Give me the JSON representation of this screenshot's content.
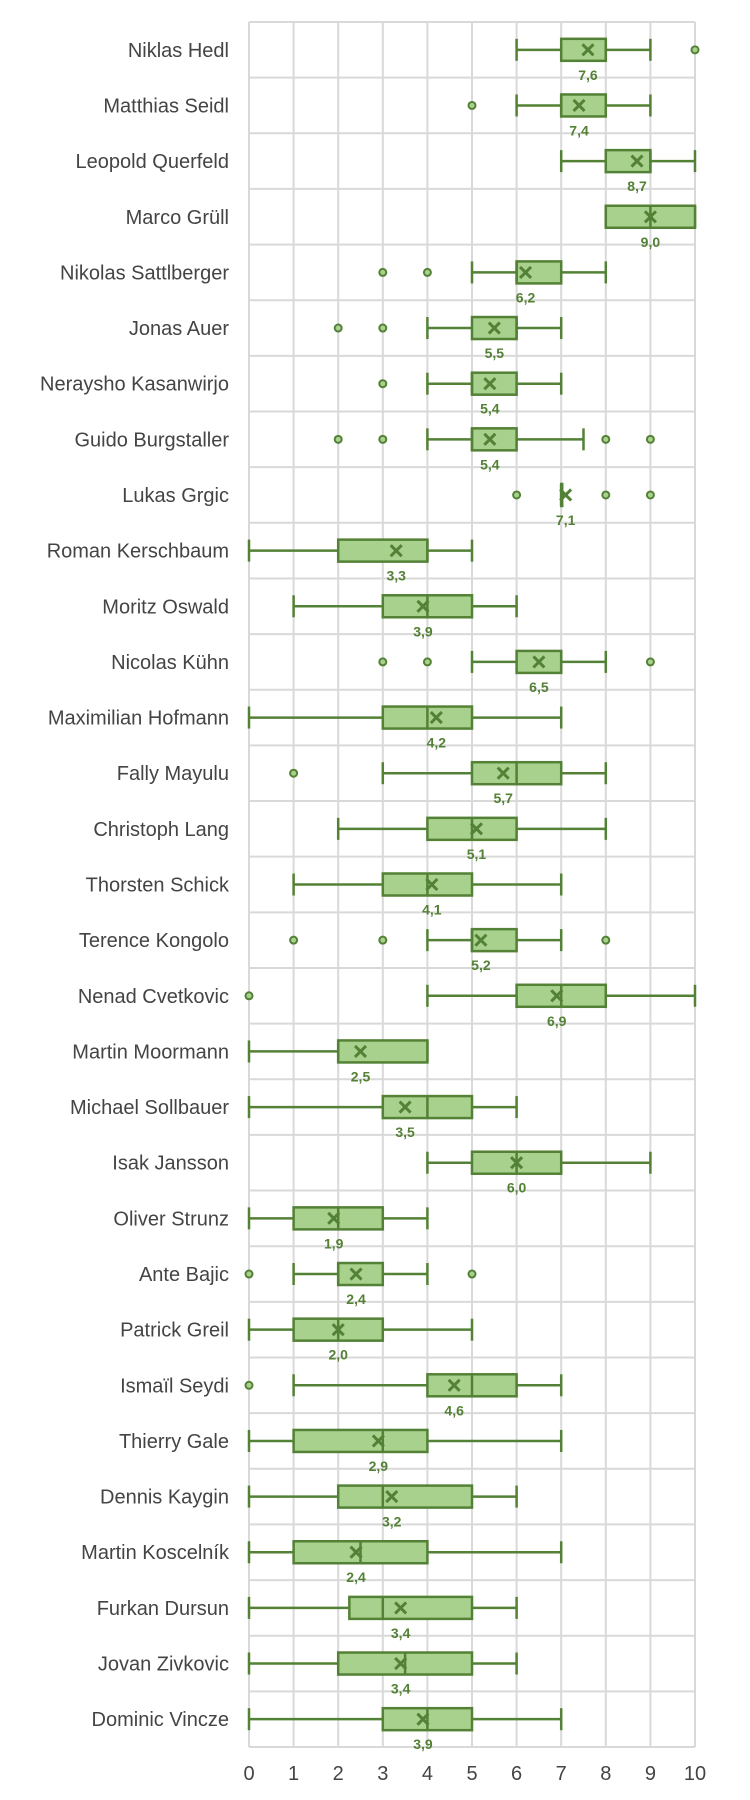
{
  "colors": {
    "box_fill": "#a9d18e",
    "box_stroke": "#538135",
    "grid": "#d9d9d9",
    "text": "#444444"
  },
  "chart_data": {
    "type": "box",
    "orientation": "horizontal",
    "xlim": [
      0,
      10
    ],
    "x_ticks": [
      "0",
      "1",
      "2",
      "3",
      "4",
      "5",
      "6",
      "7",
      "8",
      "9",
      "10"
    ],
    "grid": true,
    "legend": "none",
    "mean_marker": "x",
    "categories": [
      {
        "name": "Niklas Hedl",
        "whisker_low": 6,
        "q1": 7,
        "median": 8,
        "q3": 8,
        "whisker_high": 9,
        "mean": 7.6,
        "mean_label": "7,6",
        "outliers": [
          10
        ]
      },
      {
        "name": "Matthias Seidl",
        "whisker_low": 6,
        "q1": 7,
        "median": 7,
        "q3": 8,
        "whisker_high": 9,
        "mean": 7.4,
        "mean_label": "7,4",
        "outliers": [
          5
        ]
      },
      {
        "name": "Leopold Querfeld",
        "whisker_low": 7,
        "q1": 8,
        "median": 9,
        "q3": 9,
        "whisker_high": 10,
        "mean": 8.7,
        "mean_label": "8,7",
        "outliers": []
      },
      {
        "name": "Marco Grüll",
        "whisker_low": 8,
        "q1": 8,
        "median": 9,
        "q3": 10,
        "whisker_high": 10,
        "mean": 9.0,
        "mean_label": "9,0",
        "outliers": []
      },
      {
        "name": "Nikolas Sattlberger",
        "whisker_low": 5,
        "q1": 6,
        "median": 6,
        "q3": 7,
        "whisker_high": 8,
        "mean": 6.2,
        "mean_label": "6,2",
        "outliers": [
          3,
          4
        ]
      },
      {
        "name": "Jonas Auer",
        "whisker_low": 4,
        "q1": 5,
        "median": 6,
        "q3": 6,
        "whisker_high": 7,
        "mean": 5.5,
        "mean_label": "5,5",
        "outliers": [
          2,
          3
        ]
      },
      {
        "name": "Neraysho Kasanwirjo",
        "whisker_low": 4,
        "q1": 5,
        "median": 5,
        "q3": 6,
        "whisker_high": 7,
        "mean": 5.4,
        "mean_label": "5,4",
        "outliers": [
          3
        ]
      },
      {
        "name": "Guido Burgstaller",
        "whisker_low": 4,
        "q1": 5,
        "median": 5,
        "q3": 6,
        "whisker_high": 7.5,
        "mean": 5.4,
        "mean_label": "5,4",
        "outliers": [
          2,
          3,
          8,
          9
        ]
      },
      {
        "name": "Lukas Grgic",
        "whisker_low": 7,
        "q1": 7,
        "median": 7,
        "q3": 7,
        "whisker_high": 7,
        "mean": 7.1,
        "mean_label": "7,1",
        "outliers": [
          6,
          8,
          9
        ]
      },
      {
        "name": "Roman Kerschbaum",
        "whisker_low": 0,
        "q1": 2,
        "median": 4,
        "q3": 4,
        "whisker_high": 5,
        "mean": 3.3,
        "mean_label": "3,3",
        "outliers": []
      },
      {
        "name": "Moritz Oswald",
        "whisker_low": 1,
        "q1": 3,
        "median": 4,
        "q3": 5,
        "whisker_high": 6,
        "mean": 3.9,
        "mean_label": "3,9",
        "outliers": []
      },
      {
        "name": "Nicolas Kühn",
        "whisker_low": 5,
        "q1": 6,
        "median": 7,
        "q3": 7,
        "whisker_high": 8,
        "mean": 6.5,
        "mean_label": "6,5",
        "outliers": [
          3,
          4,
          9
        ]
      },
      {
        "name": "Maximilian Hofmann",
        "whisker_low": 0,
        "q1": 3,
        "median": 4,
        "q3": 5,
        "whisker_high": 7,
        "mean": 4.2,
        "mean_label": "4,2",
        "outliers": []
      },
      {
        "name": "Fally Mayulu",
        "whisker_low": 3,
        "q1": 5,
        "median": 6,
        "q3": 7,
        "whisker_high": 8,
        "mean": 5.7,
        "mean_label": "5,7",
        "outliers": [
          1
        ]
      },
      {
        "name": "Christoph Lang",
        "whisker_low": 2,
        "q1": 4,
        "median": 5,
        "q3": 6,
        "whisker_high": 8,
        "mean": 5.1,
        "mean_label": "5,1",
        "outliers": []
      },
      {
        "name": "Thorsten Schick",
        "whisker_low": 1,
        "q1": 3,
        "median": 4,
        "q3": 5,
        "whisker_high": 7,
        "mean": 4.1,
        "mean_label": "4,1",
        "outliers": []
      },
      {
        "name": "Terence Kongolo",
        "whisker_low": 4,
        "q1": 5,
        "median": 5,
        "q3": 6,
        "whisker_high": 7,
        "mean": 5.2,
        "mean_label": "5,2",
        "outliers": [
          1,
          3,
          8
        ]
      },
      {
        "name": "Nenad Cvetkovic",
        "whisker_low": 4,
        "q1": 6,
        "median": 7,
        "q3": 8,
        "whisker_high": 10,
        "mean": 6.9,
        "mean_label": "6,9",
        "outliers": [
          0
        ]
      },
      {
        "name": "Martin Moormann",
        "whisker_low": 0,
        "q1": 2,
        "median": 2,
        "q3": 4,
        "whisker_high": 4,
        "mean": 2.5,
        "mean_label": "2,5",
        "outliers": []
      },
      {
        "name": "Michael Sollbauer",
        "whisker_low": 0,
        "q1": 3,
        "median": 4,
        "q3": 5,
        "whisker_high": 6,
        "mean": 3.5,
        "mean_label": "3,5",
        "outliers": []
      },
      {
        "name": "Isak Jansson",
        "whisker_low": 4,
        "q1": 5,
        "median": 6,
        "q3": 7,
        "whisker_high": 9,
        "mean": 6.0,
        "mean_label": "6,0",
        "outliers": []
      },
      {
        "name": "Oliver Strunz",
        "whisker_low": 0,
        "q1": 1,
        "median": 2,
        "q3": 3,
        "whisker_high": 4,
        "mean": 1.9,
        "mean_label": "1,9",
        "outliers": []
      },
      {
        "name": "Ante Bajic",
        "whisker_low": 1,
        "q1": 2,
        "median": 2,
        "q3": 3,
        "whisker_high": 4,
        "mean": 2.4,
        "mean_label": "2,4",
        "outliers": [
          0,
          5
        ]
      },
      {
        "name": "Patrick Greil",
        "whisker_low": 0,
        "q1": 1,
        "median": 2,
        "q3": 3,
        "whisker_high": 5,
        "mean": 2.0,
        "mean_label": "2,0",
        "outliers": []
      },
      {
        "name": "Ismaïl Seydi",
        "whisker_low": 1,
        "q1": 4,
        "median": 5,
        "q3": 6,
        "whisker_high": 7,
        "mean": 4.6,
        "mean_label": "4,6",
        "outliers": [
          0
        ]
      },
      {
        "name": "Thierry Gale",
        "whisker_low": 0,
        "q1": 1,
        "median": 3,
        "q3": 4,
        "whisker_high": 7,
        "mean": 2.9,
        "mean_label": "2,9",
        "outliers": []
      },
      {
        "name": "Dennis Kaygin",
        "whisker_low": 0,
        "q1": 2,
        "median": 3,
        "q3": 5,
        "whisker_high": 6,
        "mean": 3.2,
        "mean_label": "3,2",
        "outliers": []
      },
      {
        "name": "Martin Koscelník",
        "whisker_low": 0,
        "q1": 1,
        "median": 2.5,
        "q3": 4,
        "whisker_high": 7,
        "mean": 2.4,
        "mean_label": "2,4",
        "outliers": []
      },
      {
        "name": "Furkan Dursun",
        "whisker_low": 0,
        "q1": 2.25,
        "median": 3,
        "q3": 5,
        "whisker_high": 6,
        "mean": 3.4,
        "mean_label": "3,4",
        "outliers": []
      },
      {
        "name": "Jovan Zivkovic",
        "whisker_low": 0,
        "q1": 2,
        "median": 3.5,
        "q3": 5,
        "whisker_high": 6,
        "mean": 3.4,
        "mean_label": "3,4",
        "outliers": []
      },
      {
        "name": "Dominic Vincze",
        "whisker_low": 0,
        "q1": 3,
        "median": 4,
        "q3": 5,
        "whisker_high": 7,
        "mean": 3.9,
        "mean_label": "3,9",
        "outliers": []
      }
    ]
  }
}
